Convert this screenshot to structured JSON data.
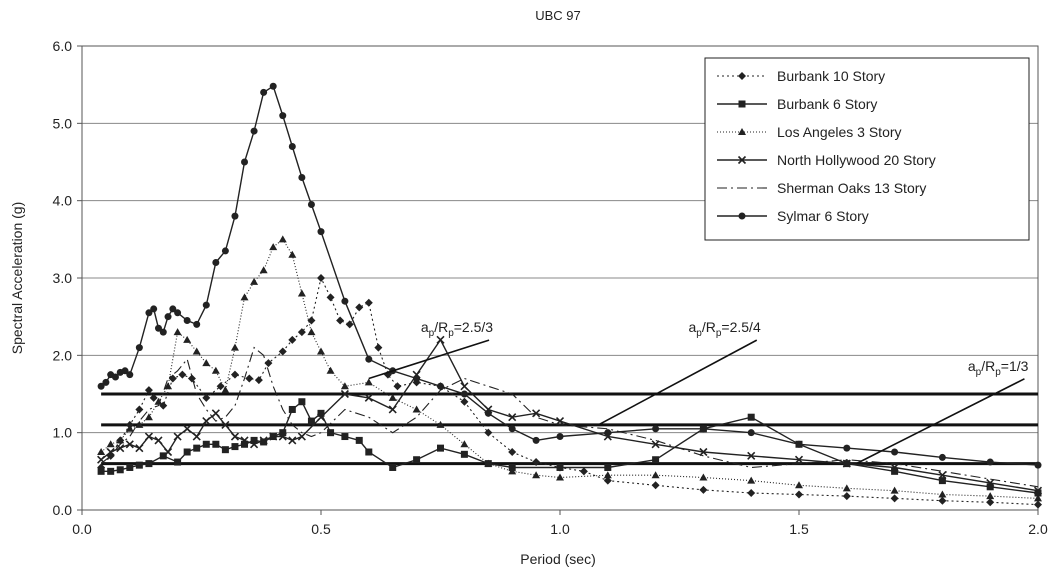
{
  "chart_data": {
    "type": "line",
    "title": "UBC 97",
    "xlabel": "Period (sec)",
    "ylabel": "Spectral Acceleration (g)",
    "xlim": [
      0,
      2.0
    ],
    "ylim": [
      0,
      6.0
    ],
    "xticks": [
      "0.0",
      "0.5",
      "1.0",
      "1.5",
      "2.0"
    ],
    "yticks": [
      "0.0",
      "1.0",
      "2.0",
      "3.0",
      "4.0",
      "5.0",
      "6.0"
    ],
    "grid": "horizontal",
    "legend_position": "top-right",
    "series": [
      {
        "name": "Burbank 10 Story",
        "marker": "diamond",
        "dash": "2,3",
        "points": [
          [
            0.04,
            0.55
          ],
          [
            0.06,
            0.7
          ],
          [
            0.08,
            0.9
          ],
          [
            0.1,
            1.1
          ],
          [
            0.12,
            1.3
          ],
          [
            0.14,
            1.55
          ],
          [
            0.15,
            1.45
          ],
          [
            0.17,
            1.35
          ],
          [
            0.19,
            1.7
          ],
          [
            0.21,
            1.75
          ],
          [
            0.23,
            1.7
          ],
          [
            0.26,
            1.45
          ],
          [
            0.29,
            1.6
          ],
          [
            0.32,
            1.75
          ],
          [
            0.35,
            1.7
          ],
          [
            0.37,
            1.68
          ],
          [
            0.39,
            1.9
          ],
          [
            0.42,
            2.05
          ],
          [
            0.44,
            2.2
          ],
          [
            0.46,
            2.3
          ],
          [
            0.48,
            2.45
          ],
          [
            0.5,
            3.0
          ],
          [
            0.52,
            2.75
          ],
          [
            0.54,
            2.45
          ],
          [
            0.56,
            2.4
          ],
          [
            0.58,
            2.62
          ],
          [
            0.6,
            2.68
          ],
          [
            0.62,
            2.1
          ],
          [
            0.64,
            1.75
          ],
          [
            0.66,
            1.6
          ],
          [
            0.7,
            1.65
          ],
          [
            0.75,
            1.6
          ],
          [
            0.8,
            1.4
          ],
          [
            0.85,
            1.0
          ],
          [
            0.9,
            0.75
          ],
          [
            0.95,
            0.62
          ],
          [
            1.0,
            0.55
          ],
          [
            1.05,
            0.5
          ],
          [
            1.1,
            0.38
          ],
          [
            1.2,
            0.32
          ],
          [
            1.3,
            0.26
          ],
          [
            1.4,
            0.22
          ],
          [
            1.5,
            0.2
          ],
          [
            1.6,
            0.18
          ],
          [
            1.7,
            0.15
          ],
          [
            1.8,
            0.12
          ],
          [
            1.9,
            0.1
          ],
          [
            2.0,
            0.07
          ]
        ]
      },
      {
        "name": "Burbank 6 Story",
        "marker": "square",
        "dash": "",
        "points": [
          [
            0.04,
            0.5
          ],
          [
            0.06,
            0.5
          ],
          [
            0.08,
            0.52
          ],
          [
            0.1,
            0.55
          ],
          [
            0.12,
            0.58
          ],
          [
            0.14,
            0.6
          ],
          [
            0.17,
            0.7
          ],
          [
            0.2,
            0.62
          ],
          [
            0.22,
            0.75
          ],
          [
            0.24,
            0.8
          ],
          [
            0.26,
            0.85
          ],
          [
            0.28,
            0.85
          ],
          [
            0.3,
            0.78
          ],
          [
            0.32,
            0.82
          ],
          [
            0.34,
            0.85
          ],
          [
            0.36,
            0.9
          ],
          [
            0.38,
            0.88
          ],
          [
            0.4,
            0.95
          ],
          [
            0.42,
            1.0
          ],
          [
            0.44,
            1.3
          ],
          [
            0.46,
            1.4
          ],
          [
            0.48,
            1.15
          ],
          [
            0.5,
            1.25
          ],
          [
            0.52,
            1.0
          ],
          [
            0.55,
            0.95
          ],
          [
            0.58,
            0.9
          ],
          [
            0.6,
            0.75
          ],
          [
            0.65,
            0.55
          ],
          [
            0.7,
            0.65
          ],
          [
            0.75,
            0.8
          ],
          [
            0.8,
            0.72
          ],
          [
            0.85,
            0.6
          ],
          [
            0.9,
            0.55
          ],
          [
            1.0,
            0.55
          ],
          [
            1.1,
            0.55
          ],
          [
            1.2,
            0.65
          ],
          [
            1.3,
            1.05
          ],
          [
            1.4,
            1.2
          ],
          [
            1.5,
            0.85
          ],
          [
            1.6,
            0.6
          ],
          [
            1.7,
            0.5
          ],
          [
            1.8,
            0.38
          ],
          [
            1.9,
            0.3
          ],
          [
            2.0,
            0.22
          ]
        ]
      },
      {
        "name": "Los Angeles 3 Story",
        "marker": "triangle",
        "dash": "1,2",
        "points": [
          [
            0.04,
            0.75
          ],
          [
            0.06,
            0.85
          ],
          [
            0.08,
            0.9
          ],
          [
            0.1,
            1.05
          ],
          [
            0.12,
            1.1
          ],
          [
            0.14,
            1.2
          ],
          [
            0.16,
            1.4
          ],
          [
            0.18,
            1.6
          ],
          [
            0.2,
            2.3
          ],
          [
            0.22,
            2.2
          ],
          [
            0.24,
            2.05
          ],
          [
            0.26,
            1.9
          ],
          [
            0.28,
            1.8
          ],
          [
            0.3,
            1.55
          ],
          [
            0.32,
            2.1
          ],
          [
            0.34,
            2.75
          ],
          [
            0.36,
            2.95
          ],
          [
            0.38,
            3.1
          ],
          [
            0.4,
            3.4
          ],
          [
            0.42,
            3.5
          ],
          [
            0.44,
            3.3
          ],
          [
            0.46,
            2.8
          ],
          [
            0.48,
            2.3
          ],
          [
            0.5,
            2.05
          ],
          [
            0.52,
            1.8
          ],
          [
            0.55,
            1.6
          ],
          [
            0.6,
            1.65
          ],
          [
            0.65,
            1.45
          ],
          [
            0.7,
            1.3
          ],
          [
            0.75,
            1.1
          ],
          [
            0.8,
            0.85
          ],
          [
            0.85,
            0.6
          ],
          [
            0.9,
            0.5
          ],
          [
            0.95,
            0.45
          ],
          [
            1.0,
            0.42
          ],
          [
            1.1,
            0.45
          ],
          [
            1.2,
            0.45
          ],
          [
            1.3,
            0.42
          ],
          [
            1.4,
            0.38
          ],
          [
            1.5,
            0.32
          ],
          [
            1.6,
            0.28
          ],
          [
            1.7,
            0.25
          ],
          [
            1.8,
            0.2
          ],
          [
            1.9,
            0.18
          ],
          [
            2.0,
            0.15
          ]
        ]
      },
      {
        "name": "North Hollywood 20 Story",
        "marker": "x",
        "dash": "",
        "points": [
          [
            0.04,
            0.65
          ],
          [
            0.06,
            0.75
          ],
          [
            0.08,
            0.8
          ],
          [
            0.1,
            0.85
          ],
          [
            0.12,
            0.8
          ],
          [
            0.14,
            0.95
          ],
          [
            0.16,
            0.9
          ],
          [
            0.18,
            0.75
          ],
          [
            0.2,
            0.95
          ],
          [
            0.22,
            1.05
          ],
          [
            0.24,
            0.95
          ],
          [
            0.26,
            1.15
          ],
          [
            0.28,
            1.25
          ],
          [
            0.3,
            1.1
          ],
          [
            0.32,
            0.95
          ],
          [
            0.34,
            0.9
          ],
          [
            0.36,
            0.85
          ],
          [
            0.38,
            0.9
          ],
          [
            0.4,
            0.95
          ],
          [
            0.42,
            0.95
          ],
          [
            0.44,
            0.9
          ],
          [
            0.46,
            0.95
          ],
          [
            0.5,
            1.2
          ],
          [
            0.55,
            1.5
          ],
          [
            0.6,
            1.45
          ],
          [
            0.65,
            1.3
          ],
          [
            0.7,
            1.75
          ],
          [
            0.75,
            2.2
          ],
          [
            0.8,
            1.6
          ],
          [
            0.85,
            1.3
          ],
          [
            0.9,
            1.2
          ],
          [
            0.95,
            1.25
          ],
          [
            1.0,
            1.15
          ],
          [
            1.1,
            0.95
          ],
          [
            1.2,
            0.85
          ],
          [
            1.3,
            0.75
          ],
          [
            1.4,
            0.7
          ],
          [
            1.5,
            0.65
          ],
          [
            1.6,
            0.6
          ],
          [
            1.7,
            0.55
          ],
          [
            1.8,
            0.45
          ],
          [
            1.9,
            0.35
          ],
          [
            2.0,
            0.25
          ]
        ]
      },
      {
        "name": "Sherman Oaks 13 Story",
        "marker": "none",
        "dash": "10,4,2,4",
        "points": [
          [
            0.04,
            0.6
          ],
          [
            0.06,
            0.7
          ],
          [
            0.08,
            0.85
          ],
          [
            0.1,
            0.95
          ],
          [
            0.12,
            1.15
          ],
          [
            0.14,
            1.3
          ],
          [
            0.16,
            1.35
          ],
          [
            0.18,
            1.7
          ],
          [
            0.2,
            1.8
          ],
          [
            0.22,
            1.95
          ],
          [
            0.24,
            1.5
          ],
          [
            0.26,
            1.3
          ],
          [
            0.28,
            1.15
          ],
          [
            0.3,
            1.2
          ],
          [
            0.32,
            1.35
          ],
          [
            0.34,
            1.7
          ],
          [
            0.36,
            2.1
          ],
          [
            0.38,
            2.0
          ],
          [
            0.4,
            1.6
          ],
          [
            0.42,
            1.3
          ],
          [
            0.44,
            1.1
          ],
          [
            0.46,
            1.0
          ],
          [
            0.48,
            0.95
          ],
          [
            0.5,
            1.0
          ],
          [
            0.55,
            1.3
          ],
          [
            0.6,
            1.2
          ],
          [
            0.65,
            1.0
          ],
          [
            0.7,
            1.2
          ],
          [
            0.75,
            1.55
          ],
          [
            0.8,
            1.7
          ],
          [
            0.85,
            1.6
          ],
          [
            0.9,
            1.5
          ],
          [
            0.95,
            1.2
          ],
          [
            1.0,
            1.1
          ],
          [
            1.1,
            1.05
          ],
          [
            1.2,
            0.9
          ],
          [
            1.3,
            0.7
          ],
          [
            1.4,
            0.55
          ],
          [
            1.5,
            0.6
          ],
          [
            1.6,
            0.65
          ],
          [
            1.7,
            0.6
          ],
          [
            1.8,
            0.5
          ],
          [
            1.9,
            0.4
          ],
          [
            2.0,
            0.3
          ]
        ]
      },
      {
        "name": "Sylmar 6 Story",
        "marker": "circle",
        "dash": "",
        "points": [
          [
            0.04,
            1.6
          ],
          [
            0.05,
            1.65
          ],
          [
            0.06,
            1.75
          ],
          [
            0.07,
            1.72
          ],
          [
            0.08,
            1.78
          ],
          [
            0.09,
            1.8
          ],
          [
            0.1,
            1.75
          ],
          [
            0.12,
            2.1
          ],
          [
            0.14,
            2.55
          ],
          [
            0.15,
            2.6
          ],
          [
            0.16,
            2.35
          ],
          [
            0.17,
            2.3
          ],
          [
            0.18,
            2.5
          ],
          [
            0.19,
            2.6
          ],
          [
            0.2,
            2.55
          ],
          [
            0.22,
            2.45
          ],
          [
            0.24,
            2.4
          ],
          [
            0.26,
            2.65
          ],
          [
            0.28,
            3.2
          ],
          [
            0.3,
            3.35
          ],
          [
            0.32,
            3.8
          ],
          [
            0.34,
            4.5
          ],
          [
            0.36,
            4.9
          ],
          [
            0.38,
            5.4
          ],
          [
            0.4,
            5.48
          ],
          [
            0.42,
            5.1
          ],
          [
            0.44,
            4.7
          ],
          [
            0.46,
            4.3
          ],
          [
            0.48,
            3.95
          ],
          [
            0.5,
            3.6
          ],
          [
            0.55,
            2.7
          ],
          [
            0.6,
            1.95
          ],
          [
            0.65,
            1.8
          ],
          [
            0.7,
            1.7
          ],
          [
            0.75,
            1.6
          ],
          [
            0.8,
            1.5
          ],
          [
            0.85,
            1.25
          ],
          [
            0.9,
            1.05
          ],
          [
            0.95,
            0.9
          ],
          [
            1.0,
            0.95
          ],
          [
            1.1,
            1.0
          ],
          [
            1.2,
            1.05
          ],
          [
            1.3,
            1.05
          ],
          [
            1.4,
            1.0
          ],
          [
            1.5,
            0.85
          ],
          [
            1.6,
            0.8
          ],
          [
            1.7,
            0.75
          ],
          [
            1.8,
            0.68
          ],
          [
            1.9,
            0.62
          ],
          [
            2.0,
            0.58
          ]
        ]
      }
    ],
    "reference_lines": [
      {
        "y": 1.5
      },
      {
        "y": 1.1
      },
      {
        "y": 0.6
      }
    ],
    "annotations": [
      {
        "main": "a",
        "sub1": "p",
        "mid": "/R",
        "sub2": "p",
        "value": "=2.5/3",
        "x": 0.86,
        "y": 2.3,
        "arrow_to": [
          0.6,
          1.7
        ]
      },
      {
        "main": "a",
        "sub1": "p",
        "mid": "/R",
        "sub2": "p",
        "value": "=2.5/4",
        "x": 1.42,
        "y": 2.3,
        "arrow_to": [
          1.08,
          1.1
        ]
      },
      {
        "main": "a",
        "sub1": "p",
        "mid": "/R",
        "sub2": "p",
        "value": "=1/3",
        "x": 1.98,
        "y": 1.8,
        "arrow_to": [
          1.62,
          0.6
        ]
      }
    ]
  }
}
